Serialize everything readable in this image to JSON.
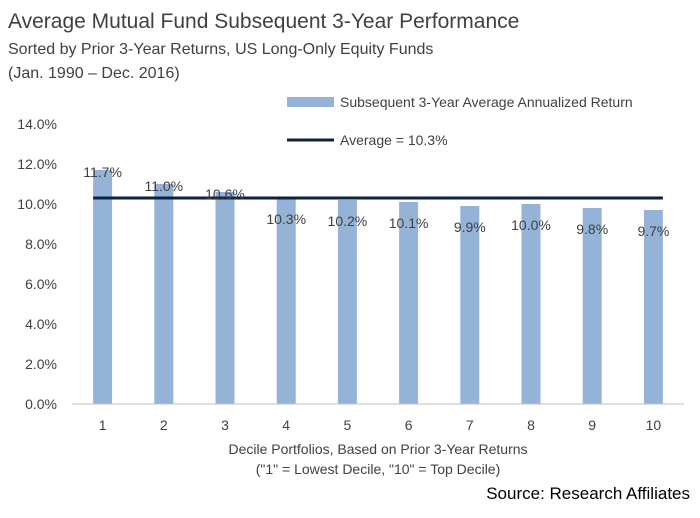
{
  "title": "Average Mutual Fund Subsequent 3-Year Performance",
  "subtitle_line1": "Sorted by Prior 3-Year Returns, US Long-Only Equity Funds",
  "subtitle_line2": "(Jan. 1990 – Dec. 2016)",
  "source": "Source: Research Affiliates",
  "colors": {
    "bar": "#95b3d7",
    "average_line": "#0d2240",
    "text": "#404040"
  },
  "chart_data": {
    "type": "bar",
    "categories": [
      "1",
      "2",
      "3",
      "4",
      "5",
      "6",
      "7",
      "8",
      "9",
      "10"
    ],
    "series": [
      {
        "name": "Subsequent 3-Year Average Annualized Return",
        "values": [
          11.7,
          11.0,
          10.6,
          10.3,
          10.2,
          10.1,
          9.9,
          10.0,
          9.8,
          9.7
        ],
        "labels": [
          "11.7%",
          "11.0%",
          "10.6%",
          "10.3%",
          "10.2%",
          "10.1%",
          "9.9%",
          "10.0%",
          "9.8%",
          "9.7%"
        ]
      }
    ],
    "average": {
      "name": "Average = 10.3%",
      "value": 10.3
    },
    "xlabel": [
      "Decile Portfolios, Based on Prior 3-Year Returns",
      "(\"1\" = Lowest Decile, \"10\" = Top Decile)"
    ],
    "ylabel": "",
    "ylim": [
      0,
      14
    ],
    "yticks": [
      0,
      2,
      4,
      6,
      8,
      10,
      12,
      14
    ],
    "ytick_labels": [
      "0.0%",
      "2.0%",
      "4.0%",
      "6.0%",
      "8.0%",
      "10.0%",
      "12.0%",
      "14.0%"
    ],
    "grid": false,
    "legend_position": "top-right"
  }
}
